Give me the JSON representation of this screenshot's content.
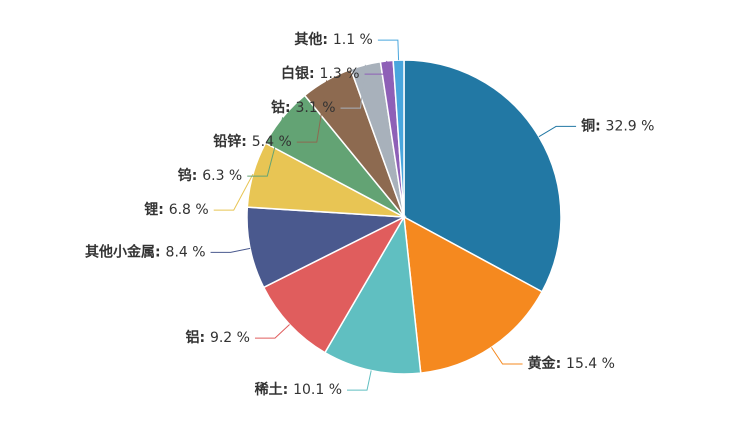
{
  "chart_data": {
    "type": "pie",
    "categories": [
      "铜",
      "黄金",
      "稀土",
      "铝",
      "其他小金属",
      "锂",
      "钨",
      "铅锌",
      "钴",
      "白银",
      "其他"
    ],
    "values": [
      32.9,
      15.4,
      10.1,
      9.2,
      8.4,
      6.8,
      6.3,
      5.4,
      3.1,
      1.3,
      1.1
    ],
    "value_labels": [
      "32.9 %",
      "15.4 %",
      "10.1 %",
      "9.2 %",
      "8.4 %",
      "6.8 %",
      "6.3 %",
      "5.4 %",
      "3.1 %",
      "1.3 %",
      "1.1 %"
    ],
    "label_separator": ": ",
    "colors": [
      "#2278a4",
      "#f5891f",
      "#60bfc1",
      "#e05d5d",
      "#4a598e",
      "#e8c554",
      "#63a374",
      "#8d6a50",
      "#a8b1bb",
      "#8e60b7",
      "#4aa6dd"
    ]
  }
}
